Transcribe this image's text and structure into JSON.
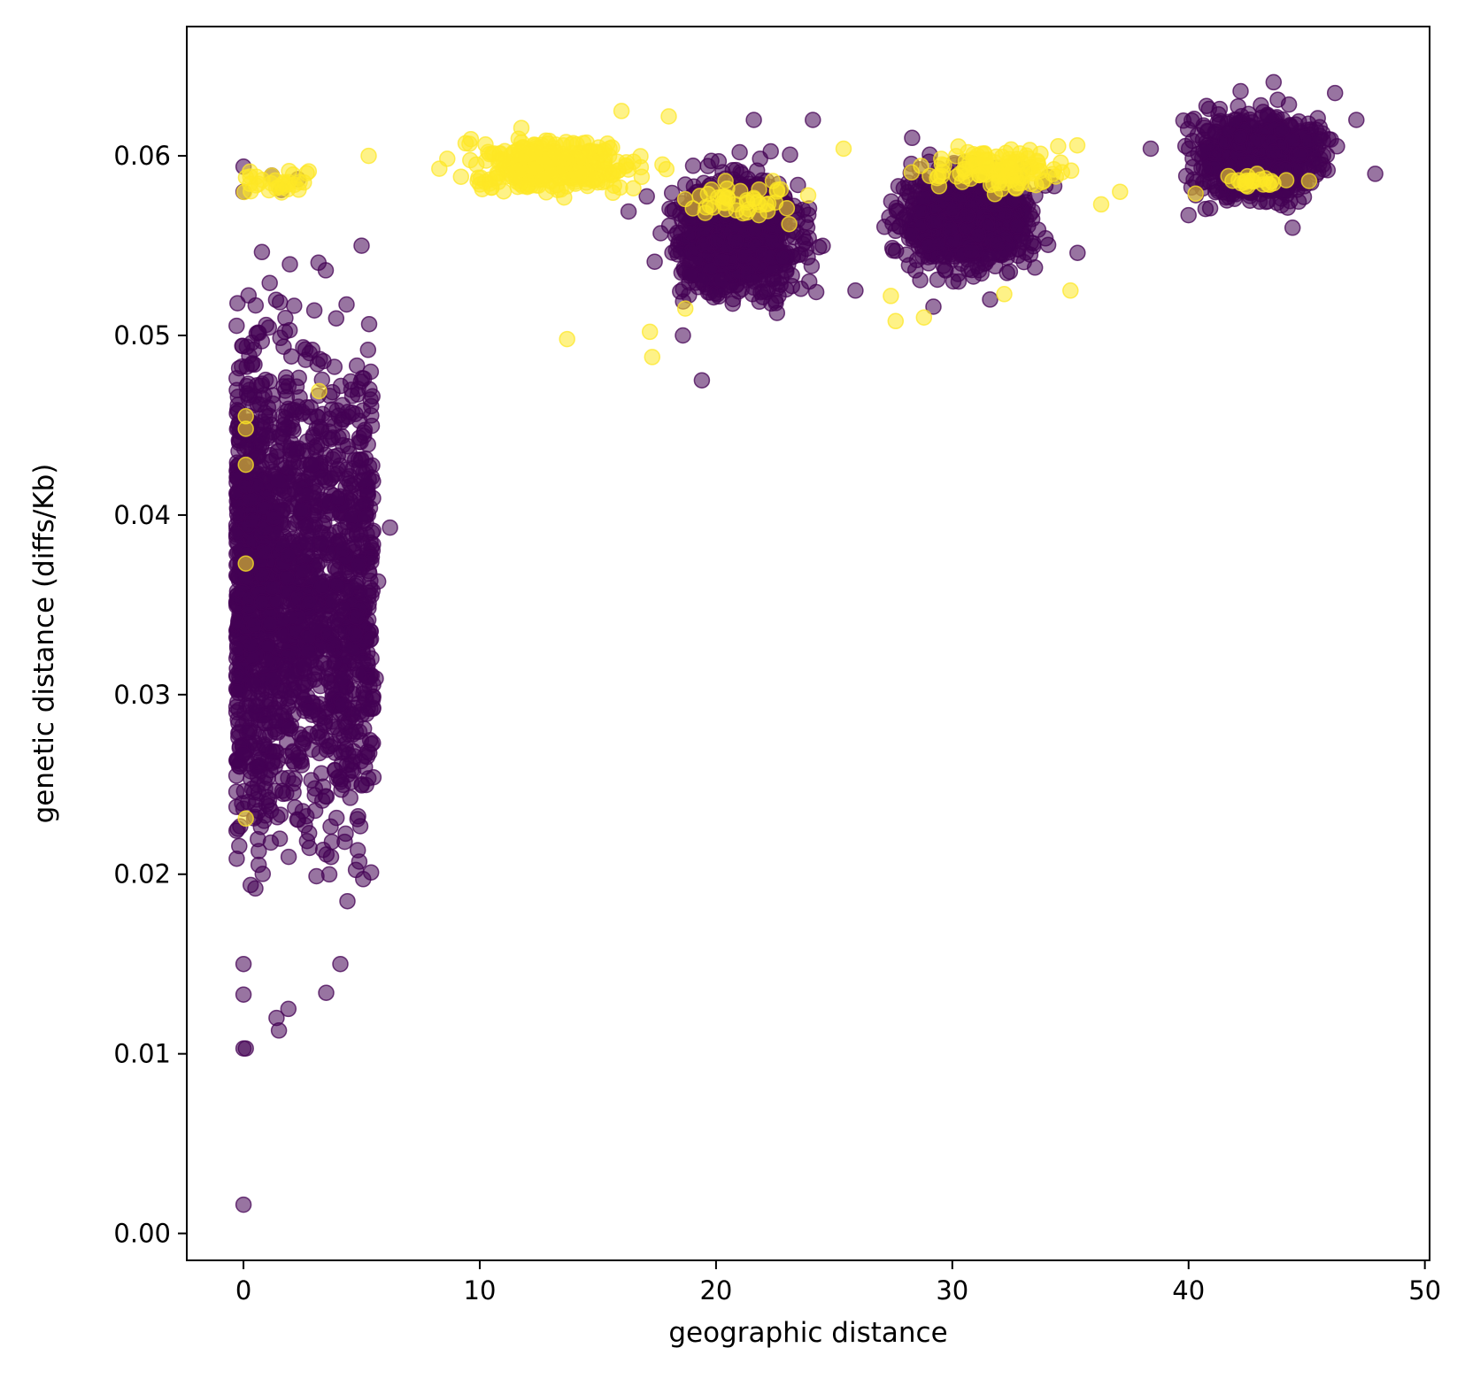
{
  "chart_data": {
    "type": "scatter",
    "title": "",
    "xlabel": "geographic distance",
    "ylabel": "genetic distance (diffs/Kb)",
    "xlim": [
      -2.4,
      50.2
    ],
    "ylim": [
      -0.0015,
      0.0672
    ],
    "xticks": [
      0,
      10,
      20,
      30,
      40,
      50
    ],
    "yticks": [
      0.0,
      0.01,
      0.02,
      0.03,
      0.04,
      0.05,
      0.06
    ],
    "xtick_labels": [
      "0",
      "10",
      "20",
      "30",
      "40",
      "50"
    ],
    "ytick_labels": [
      "0.00",
      "0.01",
      "0.02",
      "0.03",
      "0.04",
      "0.05",
      "0.06"
    ],
    "grid": false,
    "legend": "none",
    "marker_alpha": 0.55,
    "colors": {
      "group_0": "#440154",
      "group_1": "#fde725",
      "axes": "#000000",
      "background": "#ffffff"
    },
    "series": [
      {
        "name": "group_0",
        "color": "#440154",
        "clusters": [
          {
            "x_range": [
              -0.3,
              5.5
            ],
            "y_range": [
              0.014,
              0.058
            ],
            "n": 1900
          },
          {
            "x_range": [
              16.5,
              25.5
            ],
            "y_range": [
              0.05,
              0.061
            ],
            "n": 900
          },
          {
            "x_range": [
              26.0,
              35.3
            ],
            "y_range": [
              0.052,
              0.061
            ],
            "n": 800
          },
          {
            "x_range": [
              38.5,
              47.5
            ],
            "y_range": [
              0.056,
              0.064
            ],
            "n": 700
          }
        ],
        "points": [
          [
            0.0,
            0.0016
          ],
          [
            0.0,
            0.0103
          ],
          [
            0.1,
            0.0103
          ],
          [
            1.5,
            0.0113
          ],
          [
            1.4,
            0.012
          ],
          [
            1.9,
            0.0125
          ],
          [
            0.0,
            0.0133
          ],
          [
            3.5,
            0.0134
          ],
          [
            0.0,
            0.015
          ],
          [
            4.1,
            0.015
          ],
          [
            6.2,
            0.0393
          ],
          [
            5.7,
            0.0363
          ],
          [
            5.6,
            0.0309
          ],
          [
            5.5,
            0.0254
          ],
          [
            5.4,
            0.0201
          ],
          [
            4.9,
            0.0207
          ],
          [
            4.4,
            0.0185
          ],
          [
            5.1,
            0.0446
          ],
          [
            5.1,
            0.0476
          ],
          [
            5.0,
            0.055
          ],
          [
            0.0,
            0.0594
          ],
          [
            0.0,
            0.058
          ],
          [
            1.2,
            0.0589
          ],
          [
            2.3,
            0.0587
          ],
          [
            1.6,
            0.0581
          ],
          [
            19.4,
            0.0475
          ],
          [
            18.6,
            0.05
          ],
          [
            21.6,
            0.062
          ],
          [
            21.0,
            0.0602
          ],
          [
            16.3,
            0.0569
          ],
          [
            24.1,
            0.062
          ],
          [
            25.9,
            0.0525
          ],
          [
            29.2,
            0.0516
          ],
          [
            31.6,
            0.052
          ],
          [
            33.3,
            0.0545
          ],
          [
            28.3,
            0.061
          ],
          [
            35.3,
            0.0546
          ],
          [
            38.4,
            0.0604
          ],
          [
            40.0,
            0.0567
          ],
          [
            42.2,
            0.0636
          ],
          [
            43.6,
            0.0641
          ],
          [
            46.2,
            0.0635
          ],
          [
            47.1,
            0.062
          ],
          [
            47.9,
            0.059
          ],
          [
            44.4,
            0.056
          ]
        ]
      },
      {
        "name": "group_1",
        "color": "#fde725",
        "clusters": [
          {
            "x_range": [
              7.0,
              19.0
            ],
            "y_range": [
              0.057,
              0.062
            ],
            "n": 330
          },
          {
            "x_range": [
              0.0,
              2.8
            ],
            "y_range": [
              0.0572,
              0.0598
            ],
            "n": 30
          },
          {
            "x_range": [
              18.0,
              24.2
            ],
            "y_range": [
              0.056,
              0.059
            ],
            "n": 40
          },
          {
            "x_range": [
              26.5,
              37.5
            ],
            "y_range": [
              0.0573,
              0.0613
            ],
            "n": 120
          },
          {
            "x_range": [
              40.2,
              45.5
            ],
            "y_range": [
              0.0579,
              0.0593
            ],
            "n": 20
          }
        ],
        "points": [
          [
            0.1,
            0.0455
          ],
          [
            0.1,
            0.0448
          ],
          [
            0.1,
            0.0428
          ],
          [
            0.1,
            0.0373
          ],
          [
            0.1,
            0.0231
          ],
          [
            3.2,
            0.0469
          ],
          [
            1.2,
            0.0589
          ],
          [
            13.7,
            0.0498
          ],
          [
            17.2,
            0.0502
          ],
          [
            17.3,
            0.0488
          ],
          [
            18.7,
            0.0515
          ],
          [
            27.6,
            0.0508
          ],
          [
            28.8,
            0.051
          ],
          [
            32.2,
            0.0523
          ],
          [
            35.0,
            0.0525
          ],
          [
            27.4,
            0.0522
          ],
          [
            16.0,
            0.0625
          ],
          [
            18.0,
            0.0622
          ],
          [
            5.3,
            0.06
          ],
          [
            9.4,
            0.0607
          ],
          [
            23.9,
            0.0578
          ],
          [
            23.1,
            0.0562
          ],
          [
            22.4,
            0.0586
          ],
          [
            20.4,
            0.0586
          ],
          [
            25.4,
            0.0604
          ],
          [
            37.1,
            0.058
          ],
          [
            36.3,
            0.0573
          ],
          [
            40.3,
            0.0579
          ],
          [
            45.1,
            0.0586
          ],
          [
            42.9,
            0.059
          ]
        ]
      }
    ]
  }
}
